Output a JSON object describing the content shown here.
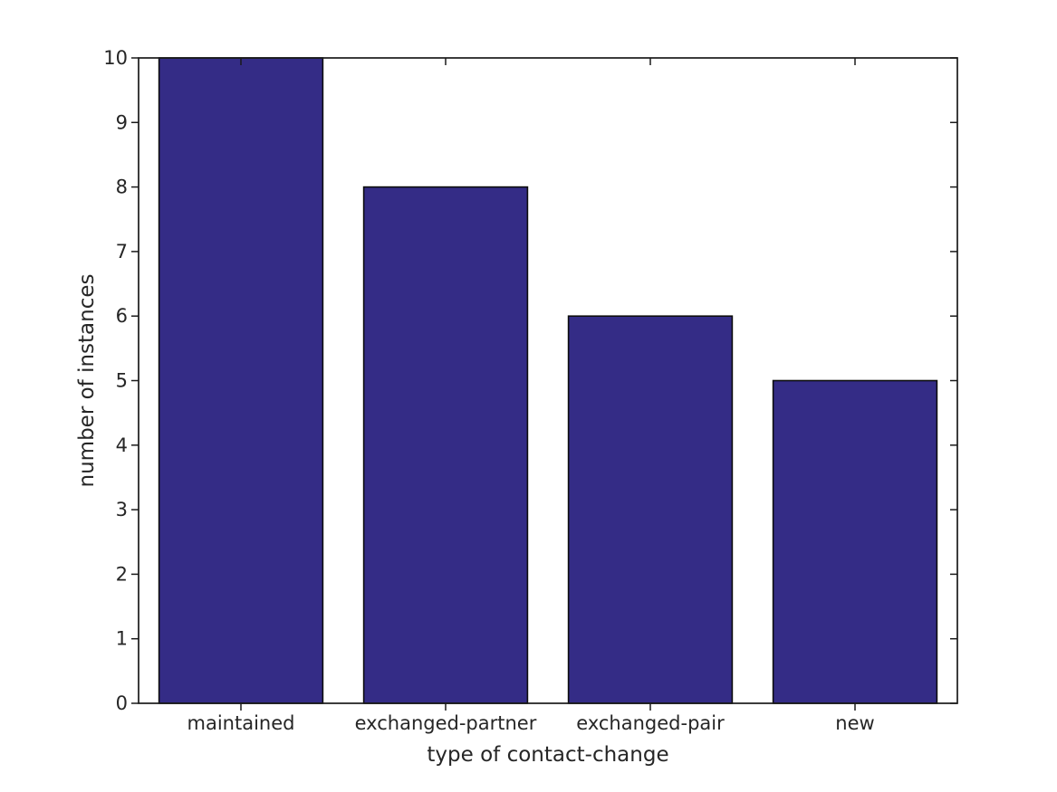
{
  "figure": {
    "background_color": "#ffffff"
  },
  "chart_data": {
    "type": "bar",
    "title": "",
    "categories": [
      "maintained",
      "exchanged-partner",
      "exchanged-pair",
      "new"
    ],
    "values": [
      10,
      8,
      6,
      5
    ],
    "xlabel": "type of contact-change",
    "ylabel": "number of instances",
    "ylim": [
      0,
      10
    ],
    "yticks": [
      0,
      1,
      2,
      3,
      4,
      5,
      6,
      7,
      8,
      9,
      10
    ],
    "grid": false,
    "boxed_frame": true,
    "legend": null,
    "bar_width_fraction": 0.8,
    "colors": {
      "bar_fill": "#342c86",
      "bar_edge": "#0d0d0d",
      "axis_line": "#1a1a1a",
      "tick_label": "#262626",
      "axis_label": "#262626"
    }
  }
}
